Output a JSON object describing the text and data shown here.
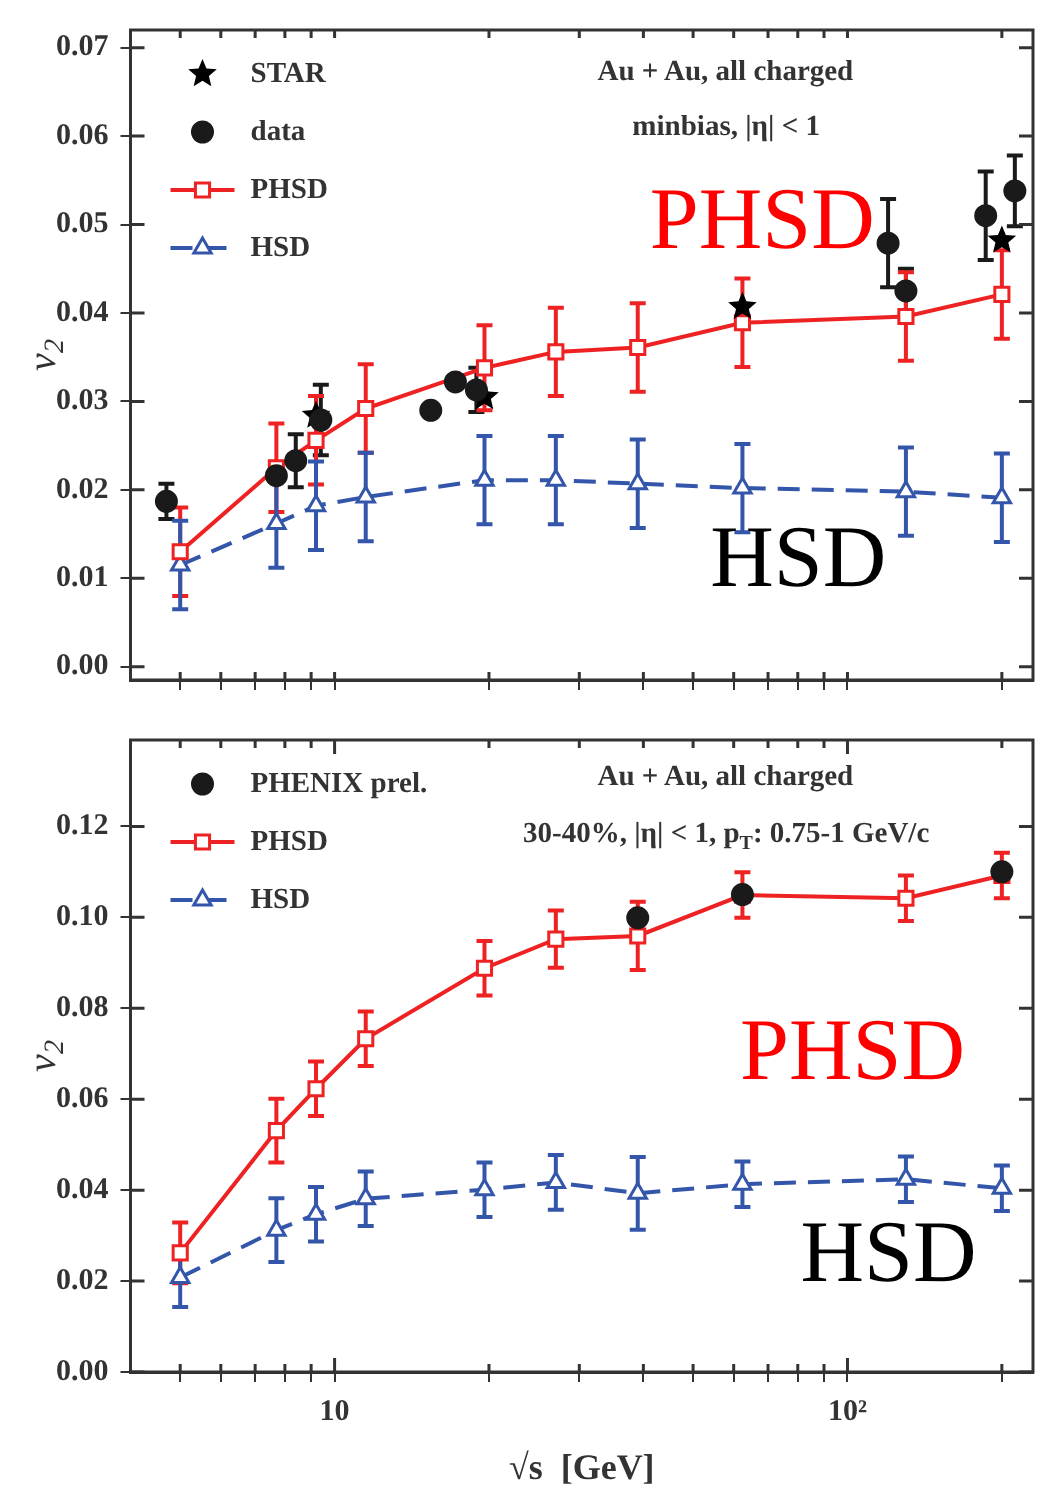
{
  "chart_data": [
    {
      "type": "line",
      "ylabel": "v$_{2}$",
      "legend": "top left",
      "log": "x",
      "tick_labels": "y",
      "grid": false,
      "annotations": [
        "Au + Au, all charged",
        "minbias, |η| < 1",
        "PHSD",
        "HSD"
      ],
      "xlim": [
        4,
        230
      ],
      "xticks": [
        {
          "value": 5,
          "label": null
        },
        {
          "value": 6,
          "label": null
        },
        {
          "value": 7,
          "label": null
        },
        {
          "value": 8,
          "label": null
        },
        {
          "value": 9,
          "label": null
        },
        {
          "value": 10,
          "label": null
        },
        {
          "value": 20,
          "label": null
        },
        {
          "value": 30,
          "label": null
        },
        {
          "value": 40,
          "label": null
        },
        {
          "value": 50,
          "label": null
        },
        {
          "value": 60,
          "label": null
        },
        {
          "value": 70,
          "label": null
        },
        {
          "value": 80,
          "label": null
        },
        {
          "value": 90,
          "label": null
        },
        {
          "value": 100,
          "label": null
        },
        {
          "value": 200,
          "label": null
        }
      ],
      "ylim": [
        -0.0015,
        0.072
      ],
      "yticks": [
        {
          "value": 0,
          "label": "0.00"
        },
        {
          "value": 0.01,
          "label": "0.01"
        },
        {
          "value": 0.02,
          "label": "0.02"
        },
        {
          "value": 0.03,
          "label": "0.03"
        },
        {
          "value": 0.04,
          "label": "0.04"
        },
        {
          "value": 0.05,
          "label": "0.05"
        },
        {
          "value": 0.06,
          "label": "0.06"
        },
        {
          "value": 0.07,
          "label": "0.07"
        }
      ],
      "series": [
        {
          "name": "STAR",
          "type": "scatter",
          "marker": "star",
          "color": "#000000",
          "x": [
            9.2,
            19.6,
            62.4,
            200
          ],
          "values": [
            0.0284,
            0.0305,
            0.0407,
            0.0482
          ]
        },
        {
          "name": "data",
          "type": "scatter",
          "marker": "circle",
          "color": "#1a1a1a",
          "x": [
            4.7,
            7.7,
            8.4,
            9.4,
            15.4,
            17.2,
            18.9,
            120,
            130,
            186,
            212
          ],
          "values": [
            0.0187,
            0.0216,
            0.0233,
            0.0279,
            0.029,
            0.0322,
            0.0313,
            0.0479,
            0.0425,
            0.051,
            0.0538
          ],
          "errors": [
            0.002,
            null,
            0.003,
            0.004,
            null,
            null,
            0.0025,
            0.005,
            0.0025,
            0.005,
            0.004
          ]
        },
        {
          "name": "PHSD",
          "type": "line",
          "marker": "square",
          "line_style": "solid",
          "color": "#ee2222",
          "x": [
            5,
            7.7,
            9.2,
            11.5,
            19.6,
            27,
            39,
            62.4,
            130,
            200
          ],
          "values": [
            0.013,
            0.0225,
            0.0256,
            0.0292,
            0.0338,
            0.0356,
            0.0361,
            0.0389,
            0.0396,
            0.0421
          ],
          "errors": [
            0.005,
            0.005,
            0.005,
            0.005,
            0.0048,
            0.005,
            0.005,
            0.005,
            0.005,
            0.005
          ]
        },
        {
          "name": "HSD",
          "type": "line",
          "marker": "triangle",
          "line_style": "dashed",
          "color": "#3355aa",
          "x": [
            5,
            7.7,
            9.2,
            11.5,
            19.6,
            27,
            39,
            62.4,
            130,
            200
          ],
          "values": [
            0.0115,
            0.0162,
            0.0182,
            0.0192,
            0.0211,
            0.0211,
            0.0207,
            0.0202,
            0.0198,
            0.0191
          ],
          "errors": [
            0.005,
            0.005,
            0.005,
            0.005,
            0.005,
            0.005,
            0.005,
            0.005,
            0.005,
            0.005
          ]
        }
      ]
    },
    {
      "type": "line",
      "ylabel": "v$_{2}$",
      "xlabel": "√s  [GeV]",
      "legend": "top left",
      "log": "x",
      "grid": false,
      "annotations": [
        "Au + Au, all charged",
        "30-40%, |η| < 1, p$_{T}$: 0.75-1 GeV/c",
        "PHSD",
        "HSD"
      ],
      "xlim": [
        4,
        230
      ],
      "xticks": [
        {
          "value": 5,
          "label": null
        },
        {
          "value": 6,
          "label": null
        },
        {
          "value": 7,
          "label": null
        },
        {
          "value": 8,
          "label": null
        },
        {
          "value": 9,
          "label": null
        },
        {
          "value": 10,
          "label": "10"
        },
        {
          "value": 20,
          "label": null
        },
        {
          "value": 30,
          "label": null
        },
        {
          "value": 40,
          "label": null
        },
        {
          "value": 50,
          "label": null
        },
        {
          "value": 60,
          "label": null
        },
        {
          "value": 70,
          "label": null
        },
        {
          "value": 80,
          "label": null
        },
        {
          "value": 90,
          "label": null
        },
        {
          "value": 100,
          "label": "10²"
        },
        {
          "value": 200,
          "label": null
        }
      ],
      "ylim": [
        0,
        0.139
      ],
      "yticks": [
        {
          "value": 0,
          "label": "0.00"
        },
        {
          "value": 0.02,
          "label": "0.02"
        },
        {
          "value": 0.04,
          "label": "0.04"
        },
        {
          "value": 0.06,
          "label": "0.06"
        },
        {
          "value": 0.08,
          "label": "0.08"
        },
        {
          "value": 0.1,
          "label": "0.10"
        },
        {
          "value": 0.12,
          "label": "0.12"
        }
      ],
      "series": [
        {
          "name": "PHENIX prel.",
          "type": "scatter",
          "marker": "circle",
          "color": "#1a1a1a",
          "x": [
            39,
            62.4,
            200
          ],
          "values": [
            0.0999,
            0.105,
            0.11
          ]
        },
        {
          "name": "PHSD",
          "type": "line",
          "marker": "square",
          "line_style": "solid",
          "color": "#ee2222",
          "x": [
            5,
            7.7,
            9.2,
            11.5,
            19.6,
            27,
            39,
            62.4,
            130,
            200
          ],
          "values": [
            0.0262,
            0.0531,
            0.0623,
            0.0733,
            0.0888,
            0.0952,
            0.0959,
            0.1049,
            0.1042,
            0.1092
          ],
          "errors": [
            0.0067,
            0.007,
            0.006,
            0.006,
            0.006,
            0.0063,
            0.0075,
            0.005,
            0.005,
            0.005
          ]
        },
        {
          "name": "HSD",
          "type": "line",
          "marker": "triangle",
          "line_style": "dashed",
          "color": "#3355aa",
          "x": [
            5,
            7.7,
            9.2,
            11.5,
            19.6,
            27,
            39,
            62.4,
            130,
            200
          ],
          "values": [
            0.0208,
            0.0312,
            0.0347,
            0.0381,
            0.0401,
            0.0417,
            0.0393,
            0.0413,
            0.0424,
            0.0404
          ],
          "errors": [
            0.0065,
            0.007,
            0.006,
            0.006,
            0.006,
            0.006,
            0.008,
            0.005,
            0.005,
            0.005
          ]
        }
      ]
    }
  ]
}
